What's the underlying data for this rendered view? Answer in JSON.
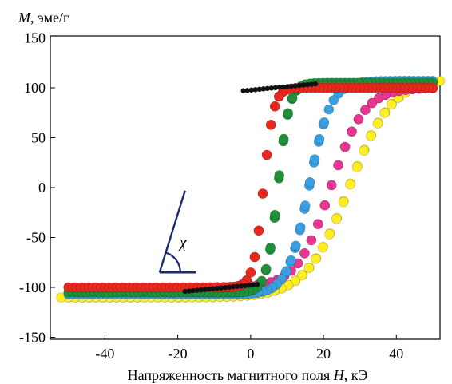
{
  "chart_data": {
    "type": "scatter",
    "title": "",
    "ylabel_var": "M",
    "ylabel_rest": ", эме/г",
    "xlabel_text": "Напряженность магнитного поля ",
    "xlabel_var": "H",
    "xlabel_unit": ", кЭ",
    "xlim": [
      -55,
      52
    ],
    "ylim": [
      -152,
      152
    ],
    "x_ticks": [
      -40,
      -20,
      0,
      20,
      40
    ],
    "y_ticks": [
      150,
      100,
      50,
      0,
      -50,
      -100,
      -150
    ],
    "x_tick_labels": [
      "-40",
      "-20",
      "0",
      "20",
      "40"
    ],
    "y_tick_labels": [
      "150",
      "100",
      "50",
      "0",
      "-50",
      "-100",
      "-150"
    ],
    "grid": false,
    "annotation": "χ",
    "series": [
      {
        "color": "#ffee22",
        "Hc": 27,
        "Ms": 110,
        "w": 0.085,
        "xmax": 52
      },
      {
        "color": "#e8358f",
        "Hc": 22,
        "Ms": 100,
        "w": 0.11,
        "xmax": 50
      },
      {
        "color": "#3a9fe0",
        "Hc": 16,
        "Ms": 107,
        "w": 0.17,
        "xmax": 20
      },
      {
        "color": "#1f8f3a",
        "Hc": 7.5,
        "Ms": 105,
        "w": 0.32,
        "xmax": 15
      },
      {
        "color": "#e8281e",
        "Hc": 3.5,
        "Ms": 100,
        "w": 0.36,
        "xmax": 10
      }
    ],
    "susceptibility_line": {
      "color": "#1b2a6b",
      "from": [
        -25,
        -85
      ],
      "to": [
        -18,
        -3
      ],
      "baseline_to": [
        -15,
        -85
      ]
    }
  }
}
